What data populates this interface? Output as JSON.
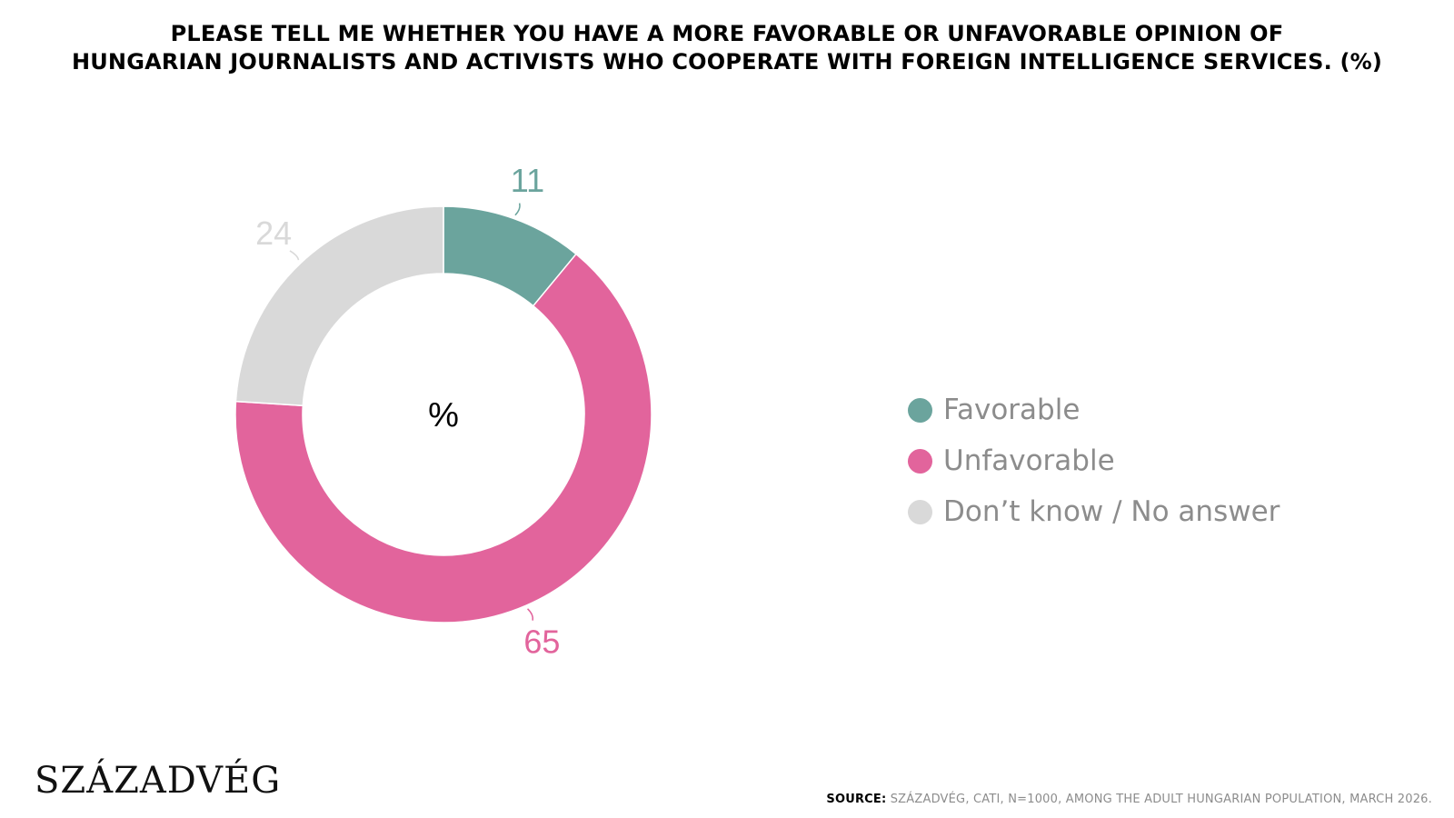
{
  "title": {
    "line1": "PLEASE TELL ME WHETHER YOU HAVE A MORE FAVORABLE OR UNFAVORABLE OPINION OF",
    "line2": "HUNGARIAN JOURNALISTS AND ACTIVISTS WHO COOPERATE WITH FOREIGN INTELLIGENCE SERVICES. (%)"
  },
  "chart_data": {
    "type": "pie",
    "subtype": "donut",
    "center_label": "%",
    "categories": [
      "Favorable",
      "Unfavorable",
      "Don’t know / No answer"
    ],
    "values": [
      11,
      65,
      24
    ],
    "colors": [
      "#6ba49d",
      "#e2649c",
      "#d9d9d9"
    ],
    "legend_position": "right"
  },
  "legend": {
    "items": [
      {
        "label": "Favorable",
        "color": "#6ba49d"
      },
      {
        "label": "Unfavorable",
        "color": "#e2649c"
      },
      {
        "label": "Don’t know / No answer",
        "color": "#d9d9d9"
      }
    ]
  },
  "logo": {
    "text": "SZÁZADVÉG"
  },
  "source": {
    "key": "SOURCE:",
    "text": " SZÁZADVÉG, CATI, N=1000, AMONG THE ADULT HUNGARIAN POPULATION, MARCH 2026."
  }
}
